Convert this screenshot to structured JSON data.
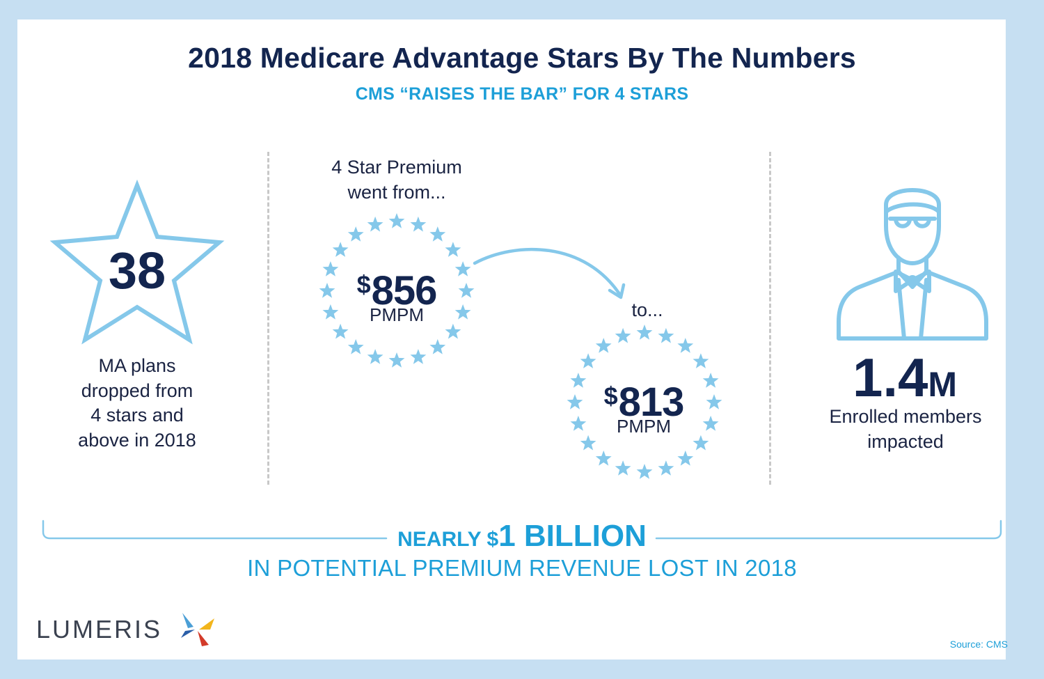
{
  "header": {
    "title": "2018 Medicare Advantage Stars By The Numbers",
    "subtitle": "CMS “RAISES THE BAR” FOR 4 STARS"
  },
  "left_panel": {
    "value": "38",
    "caption_lines": [
      "MA plans",
      "dropped from",
      "4 stars and",
      "above in 2018"
    ]
  },
  "middle_panel": {
    "intro_lines": [
      "4 Star Premium",
      "went from..."
    ],
    "from": {
      "symbol": "$",
      "amount": "856",
      "unit": "PMPM"
    },
    "to_label": "to...",
    "to": {
      "symbol": "$",
      "amount": "813",
      "unit": "PMPM"
    }
  },
  "right_panel": {
    "value": "1.4",
    "suffix": "M",
    "caption_lines": [
      "Enrolled members",
      "impacted"
    ]
  },
  "footer_headline": {
    "prefix": "NEARLY ",
    "symbol": "$",
    "amount": "1 BILLION",
    "subline": "IN POTENTIAL PREMIUM REVENUE LOST IN 2018"
  },
  "brand": {
    "logo_text": "LUMERIS"
  },
  "source": "Source: CMS",
  "colors": {
    "background": "#c6dff2",
    "navy": "#13254f",
    "accent_blue": "#1d9fd8",
    "light_blue": "#85c8ea",
    "divider": "#c8c8c8"
  },
  "icons": [
    "star-outline-icon",
    "star-ring-icon",
    "curved-arrow-icon",
    "person-bowtie-icon",
    "lumeris-logo-mark"
  ]
}
